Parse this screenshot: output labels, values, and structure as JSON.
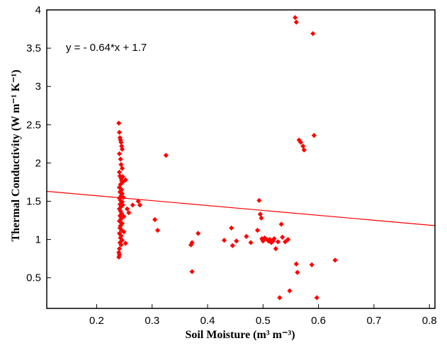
{
  "chart_data": {
    "type": "scatter",
    "title": "",
    "xlabel": "Soil Moisture (m³ m⁻³)",
    "ylabel": "Thermal Conductivity (W m⁻¹ K⁻¹)",
    "xlim": [
      0.11,
      0.81
    ],
    "ylim": [
      0.1,
      4.0
    ],
    "xticks": [
      0.2,
      0.3,
      0.4,
      0.5,
      0.6,
      0.7,
      0.8
    ],
    "xtick_labels": [
      "0.2",
      "0.3",
      "0.4",
      "0.5",
      "0.6",
      "0.7",
      "0.8"
    ],
    "yticks": [
      0.5,
      1,
      1.5,
      2,
      2.5,
      3,
      3.5,
      4
    ],
    "ytick_labels": [
      "0.5",
      "1",
      "1.5",
      "2",
      "2.5",
      "3",
      "3.5",
      "4"
    ],
    "grid": false,
    "annotation": "y = - 0.64*x + 1.7",
    "colors": {
      "points": "#ff0000",
      "fit_line": "#ff0000",
      "axes": "#000000"
    },
    "fit_line": {
      "slope": -0.64,
      "intercept": 1.7
    },
    "points": [
      [
        0.24,
        2.52
      ],
      [
        0.241,
        2.4
      ],
      [
        0.242,
        2.33
      ],
      [
        0.243,
        2.3
      ],
      [
        0.244,
        2.27
      ],
      [
        0.245,
        2.22
      ],
      [
        0.246,
        2.18
      ],
      [
        0.241,
        2.12
      ],
      [
        0.243,
        2.05
      ],
      [
        0.244,
        1.98
      ],
      [
        0.246,
        1.93
      ],
      [
        0.241,
        1.88
      ],
      [
        0.242,
        1.83
      ],
      [
        0.244,
        1.8
      ],
      [
        0.245,
        1.77
      ],
      [
        0.247,
        1.75
      ],
      [
        0.243,
        1.72
      ],
      [
        0.241,
        1.68
      ],
      [
        0.245,
        1.65
      ],
      [
        0.242,
        1.62
      ],
      [
        0.246,
        1.6
      ],
      [
        0.244,
        1.57
      ],
      [
        0.241,
        1.54
      ],
      [
        0.243,
        1.51
      ],
      [
        0.246,
        1.49
      ],
      [
        0.242,
        1.46
      ],
      [
        0.244,
        1.43
      ],
      [
        0.241,
        1.4
      ],
      [
        0.243,
        1.37
      ],
      [
        0.245,
        1.34
      ],
      [
        0.242,
        1.31
      ],
      [
        0.244,
        1.27
      ],
      [
        0.241,
        1.24
      ],
      [
        0.246,
        1.21
      ],
      [
        0.243,
        1.18
      ],
      [
        0.242,
        1.15
      ],
      [
        0.245,
        1.12
      ],
      [
        0.241,
        1.08
      ],
      [
        0.244,
        1.05
      ],
      [
        0.243,
        1.02
      ],
      [
        0.246,
        0.99
      ],
      [
        0.242,
        0.96
      ],
      [
        0.244,
        0.93
      ],
      [
        0.241,
        0.88
      ],
      [
        0.24,
        0.83
      ],
      [
        0.241,
        0.8
      ],
      [
        0.24,
        0.77
      ],
      [
        0.247,
        1.82
      ],
      [
        0.248,
        1.55
      ],
      [
        0.249,
        1.3
      ],
      [
        0.249,
        1.1
      ],
      [
        0.247,
        1.45
      ],
      [
        0.252,
        1.78
      ],
      [
        0.252,
        0.95
      ],
      [
        0.255,
        1.4
      ],
      [
        0.258,
        1.35
      ],
      [
        0.265,
        1.45
      ],
      [
        0.275,
        1.5
      ],
      [
        0.278,
        1.45
      ],
      [
        0.305,
        1.26
      ],
      [
        0.31,
        1.12
      ],
      [
        0.325,
        2.1
      ],
      [
        0.37,
        0.93
      ],
      [
        0.372,
        0.96
      ],
      [
        0.372,
        0.58
      ],
      [
        0.383,
        1.08
      ],
      [
        0.43,
        0.99
      ],
      [
        0.443,
        1.15
      ],
      [
        0.445,
        0.92
      ],
      [
        0.452,
        0.98
      ],
      [
        0.47,
        1.04
      ],
      [
        0.478,
        0.96
      ],
      [
        0.49,
        1.12
      ],
      [
        0.493,
        1.51
      ],
      [
        0.495,
        1.33
      ],
      [
        0.497,
        1.28
      ],
      [
        0.498,
        1.01
      ],
      [
        0.5,
        0.98
      ],
      [
        0.503,
        1.02
      ],
      [
        0.507,
        1.0
      ],
      [
        0.51,
        0.98
      ],
      [
        0.512,
        1.0
      ],
      [
        0.515,
        0.96
      ],
      [
        0.518,
        0.98
      ],
      [
        0.52,
        1.01
      ],
      [
        0.523,
        0.88
      ],
      [
        0.527,
        0.97
      ],
      [
        0.533,
        1.2
      ],
      [
        0.535,
        1.03
      ],
      [
        0.54,
        0.97
      ],
      [
        0.545,
        1.0
      ],
      [
        0.53,
        0.24
      ],
      [
        0.548,
        0.33
      ],
      [
        0.558,
        3.9
      ],
      [
        0.56,
        3.84
      ],
      [
        0.565,
        2.3
      ],
      [
        0.568,
        2.27
      ],
      [
        0.572,
        2.22
      ],
      [
        0.574,
        2.17
      ],
      [
        0.56,
        0.68
      ],
      [
        0.562,
        0.57
      ],
      [
        0.588,
        0.67
      ],
      [
        0.59,
        3.69
      ],
      [
        0.592,
        2.36
      ],
      [
        0.597,
        0.24
      ],
      [
        0.63,
        0.73
      ]
    ]
  }
}
